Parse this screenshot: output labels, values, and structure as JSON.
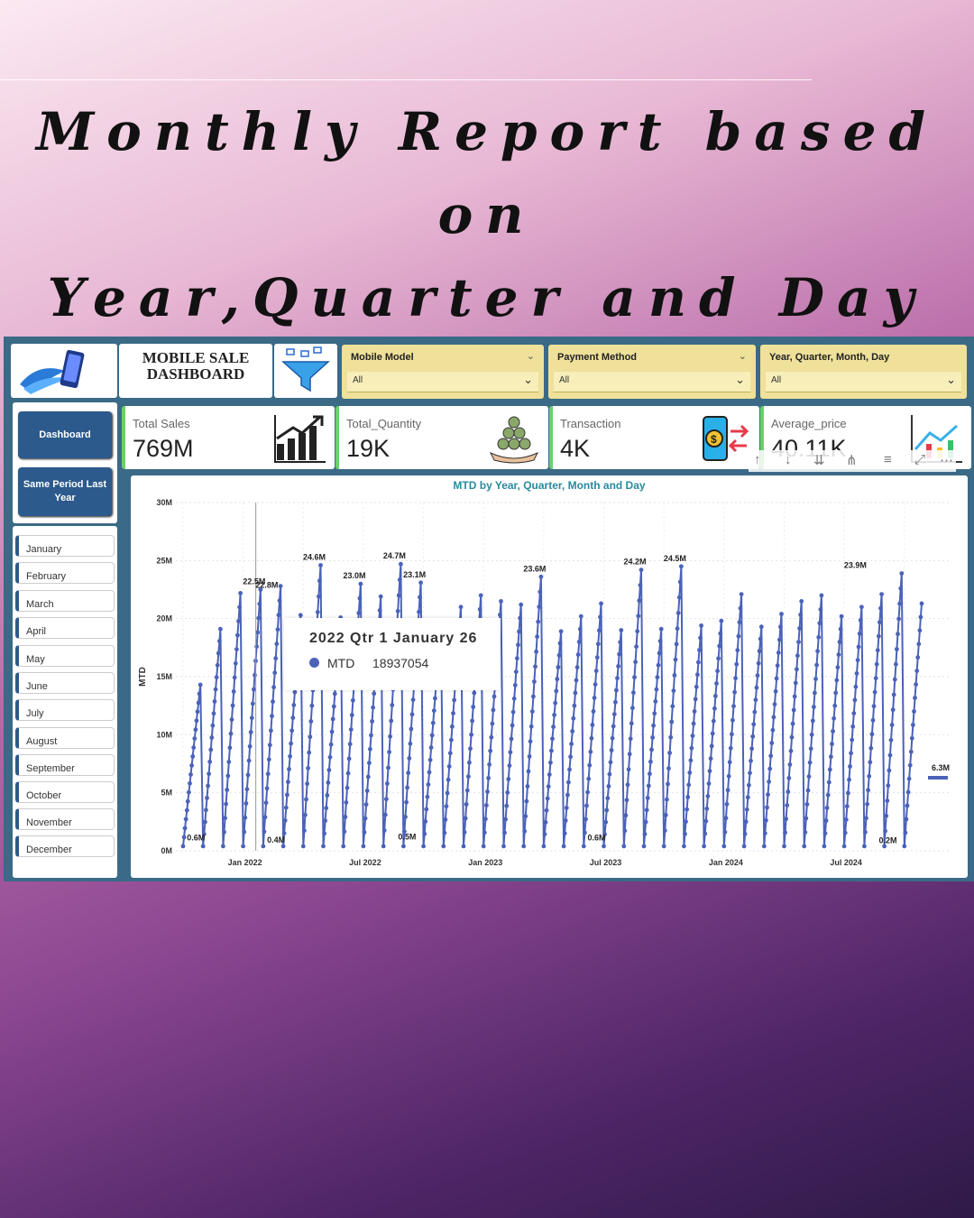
{
  "headline": {
    "line1": "Monthly Report based on",
    "line2": "Year,Quarter and Day"
  },
  "dashboard": {
    "title_line1": "MOBILE SALE",
    "title_line2": "DASHBOARD",
    "slicers": [
      {
        "label": "Mobile Model",
        "value": "All"
      },
      {
        "label": "Payment Method",
        "value": "All"
      },
      {
        "label": "Year, Quarter, Month, Day",
        "value": "All"
      }
    ],
    "nav": {
      "dashboard": "Dashboard",
      "same_period": "Same Period Last Year"
    },
    "months": [
      "January",
      "February",
      "March",
      "April",
      "May",
      "June",
      "July",
      "August",
      "September",
      "October",
      "November",
      "December"
    ],
    "kpis": [
      {
        "label": "Total Sales",
        "value": "769M",
        "icon": "bar-growth-icon"
      },
      {
        "label": "Total_Quantity",
        "value": "19K",
        "icon": "money-stack-icon"
      },
      {
        "label": "Transaction",
        "value": "4K",
        "icon": "mobile-payment-icon"
      },
      {
        "label": "Average_price",
        "value": "40.11K",
        "icon": "trend-chart-icon"
      }
    ],
    "tooltip": {
      "title": "2022 Qtr 1 January 26",
      "key": "MTD",
      "value": "18937054"
    }
  },
  "chart_data": {
    "type": "line",
    "title": "MTD by Year, Quarter, Month and Day",
    "ylabel": "MTD",
    "xlabel": "",
    "ylim": [
      0,
      30
    ],
    "y_unit": "M",
    "yticks": [
      "0M",
      "5M",
      "10M",
      "15M",
      "20M",
      "25M",
      "30M"
    ],
    "xticks": [
      "Jan 2022",
      "Jul 2022",
      "Jan 2023",
      "Jul 2023",
      "Jan 2024",
      "Jul 2024"
    ],
    "series_color": "#4b62b8",
    "series": [
      {
        "name": "MTD",
        "months": [
          "2021-10",
          "2021-11",
          "2021-12",
          "2022-01",
          "2022-02",
          "2022-03",
          "2022-04",
          "2022-05",
          "2022-06",
          "2022-07",
          "2022-08",
          "2022-09",
          "2022-10",
          "2022-11",
          "2022-12",
          "2023-01",
          "2023-02",
          "2023-03",
          "2023-04",
          "2023-05",
          "2023-06",
          "2023-07",
          "2023-08",
          "2023-09",
          "2023-10",
          "2023-11",
          "2023-12",
          "2024-01",
          "2024-02",
          "2024-03",
          "2024-04",
          "2024-05",
          "2024-06",
          "2024-07",
          "2024-08",
          "2024-09",
          "2024-10"
        ],
        "month_end_values": [
          14.3,
          19.1,
          22.2,
          22.5,
          22.8,
          20.3,
          24.6,
          20.1,
          23.0,
          21.9,
          24.7,
          23.1,
          19.5,
          21.0,
          22.0,
          21.5,
          21.2,
          23.6,
          18.9,
          20.2,
          21.3,
          19.0,
          24.2,
          19.1,
          24.5,
          19.4,
          19.8,
          22.1,
          19.3,
          20.4,
          21.5,
          22.0,
          20.2,
          21.0,
          22.1,
          23.9,
          21.3
        ]
      }
    ],
    "data_labels": [
      "0.6M",
      "22.5M",
      "0.4M",
      "22.8M",
      "24.6M",
      "23.0M",
      "24.7M",
      "0.5M",
      "23.1M",
      "23.6M",
      "0.6M",
      "24.2M",
      "24.5M",
      "23.9M",
      "0.2M",
      "6.3M"
    ]
  }
}
